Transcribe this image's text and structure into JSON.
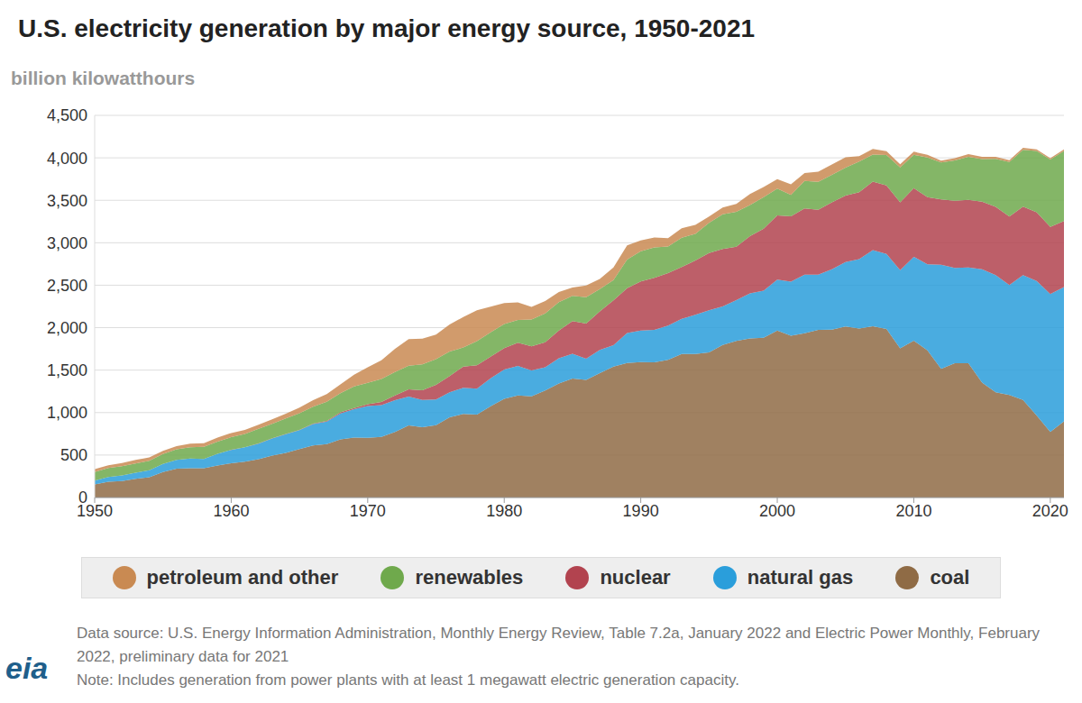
{
  "chart_data": {
    "type": "area",
    "stacked": true,
    "grid": true,
    "legend": "bottom",
    "title": "U.S. electricity generation by major energy source, 1950-2021",
    "y_label": "billion kilowatthours",
    "source": "Data source: U.S. Energy Information Administration, Monthly Energy Review, Table 7.2a, January 2022 and Electric Power Monthly, February 2022, preliminary data for 2021",
    "note": "Note: Includes generation from power plants with at least 1 megawatt electric generation capacity.",
    "logo": "eia",
    "xlim": [
      1950,
      2021
    ],
    "xticks": [
      1950,
      1960,
      1970,
      1980,
      1990,
      2000,
      2010,
      2020
    ],
    "ylim": [
      0,
      4500
    ],
    "yticks": [
      0,
      500,
      {
        "value": 1000,
        "label": "1,000"
      },
      {
        "value": 1500,
        "label": "1,500"
      },
      {
        "value": 2000,
        "label": "2,000"
      },
      {
        "value": 2500,
        "label": "2,500"
      },
      {
        "value": 3000,
        "label": "3,000"
      },
      {
        "value": 3500,
        "label": "3,500"
      },
      {
        "value": 4000,
        "label": "4,000"
      },
      {
        "value": 4500,
        "label": "4,500"
      }
    ],
    "x": [
      1950,
      1951,
      1952,
      1953,
      1954,
      1955,
      1956,
      1957,
      1958,
      1959,
      1960,
      1961,
      1962,
      1963,
      1964,
      1965,
      1966,
      1967,
      1968,
      1969,
      1970,
      1971,
      1972,
      1973,
      1974,
      1975,
      1976,
      1977,
      1978,
      1979,
      1980,
      1981,
      1982,
      1983,
      1984,
      1985,
      1986,
      1987,
      1988,
      1989,
      1990,
      1991,
      1992,
      1993,
      1994,
      1995,
      1996,
      1997,
      1998,
      1999,
      2000,
      2001,
      2002,
      2003,
      2004,
      2005,
      2006,
      2007,
      2008,
      2009,
      2010,
      2011,
      2012,
      2013,
      2014,
      2015,
      2016,
      2017,
      2018,
      2019,
      2020,
      2021
    ],
    "series": [
      {
        "name": "petroleum and other",
        "color": "#c98a52",
        "values": [
          34,
          33,
          37,
          42,
          39,
          37,
          38,
          41,
          41,
          47,
          48,
          49,
          49,
          52,
          57,
          65,
          79,
          89,
          104,
          138,
          184,
          220,
          274,
          314,
          301,
          289,
          320,
          358,
          365,
          304,
          246,
          206,
          147,
          144,
          120,
          100,
          137,
          118,
          149,
          168,
          126,
          119,
          100,
          112,
          106,
          74,
          81,
          93,
          128,
          118,
          111,
          125,
          94,
          119,
          121,
          122,
          64,
          66,
          46,
          39,
          37,
          30,
          23,
          27,
          30,
          28,
          24,
          21,
          25,
          19,
          17,
          19
        ]
      },
      {
        "name": "renewables",
        "color": "#6fa94c",
        "values": [
          101,
          105,
          110,
          109,
          112,
          117,
          125,
          133,
          143,
          142,
          149,
          155,
          172,
          169,
          181,
          196,
          198,
          225,
          226,
          254,
          251,
          270,
          276,
          278,
          307,
          304,
          289,
          225,
          284,
          285,
          285,
          269,
          317,
          342,
          334,
          296,
          311,
          263,
          239,
          336,
          357,
          358,
          311,
          344,
          313,
          357,
          409,
          411,
          367,
          373,
          318,
          252,
          323,
          330,
          323,
          329,
          362,
          320,
          357,
          410,
          393,
          468,
          436,
          475,
          507,
          500,
          565,
          644,
          668,
          720,
          792,
          826
        ]
      },
      {
        "name": "nuclear",
        "color": "#b2434f",
        "values": [
          0,
          0,
          0,
          0,
          0,
          0,
          0,
          0,
          0,
          0,
          1,
          2,
          2,
          3,
          3,
          4,
          6,
          8,
          13,
          14,
          22,
          38,
          54,
          84,
          114,
          173,
          191,
          251,
          276,
          255,
          251,
          273,
          283,
          294,
          328,
          384,
          414,
          455,
          527,
          529,
          577,
          613,
          619,
          610,
          640,
          673,
          675,
          629,
          673,
          728,
          754,
          769,
          780,
          764,
          789,
          782,
          787,
          806,
          806,
          799,
          807,
          790,
          769,
          789,
          797,
          797,
          806,
          805,
          807,
          809,
          790,
          778
        ]
      },
      {
        "name": "natural gas",
        "color": "#2a9edb",
        "values": [
          45,
          57,
          65,
          72,
          82,
          95,
          104,
          114,
          111,
          138,
          158,
          169,
          184,
          202,
          220,
          222,
          251,
          265,
          304,
          333,
          373,
          375,
          376,
          341,
          320,
          300,
          295,
          306,
          305,
          329,
          346,
          346,
          305,
          274,
          297,
          292,
          249,
          273,
          253,
          352,
          373,
          381,
          404,
          415,
          460,
          496,
          455,
          479,
          531,
          556,
          601,
          639,
          691,
          650,
          710,
          761,
          816,
          897,
          883,
          921,
          988,
          1014,
          1226,
          1124,
          1127,
          1335,
          1379,
          1297,
          1469,
          1586,
          1624,
          1579
        ]
      },
      {
        "name": "coal",
        "color": "#8f6b45",
        "values": [
          155,
          185,
          195,
          219,
          239,
          301,
          339,
          346,
          344,
          378,
          403,
          422,
          450,
          494,
          526,
          571,
          613,
          630,
          685,
          706,
          704,
          713,
          771,
          848,
          828,
          853,
          944,
          985,
          976,
          1075,
          1162,
          1203,
          1192,
          1259,
          1342,
          1402,
          1386,
          1464,
          1541,
          1584,
          1594,
          1592,
          1621,
          1690,
          1691,
          1709,
          1796,
          1845,
          1874,
          1881,
          1966,
          1904,
          1933,
          1974,
          1978,
          2013,
          1991,
          2016,
          1986,
          1756,
          1847,
          1733,
          1514,
          1581,
          1582,
          1352,
          1239,
          1206,
          1149,
          965,
          773,
          898
        ]
      }
    ]
  }
}
